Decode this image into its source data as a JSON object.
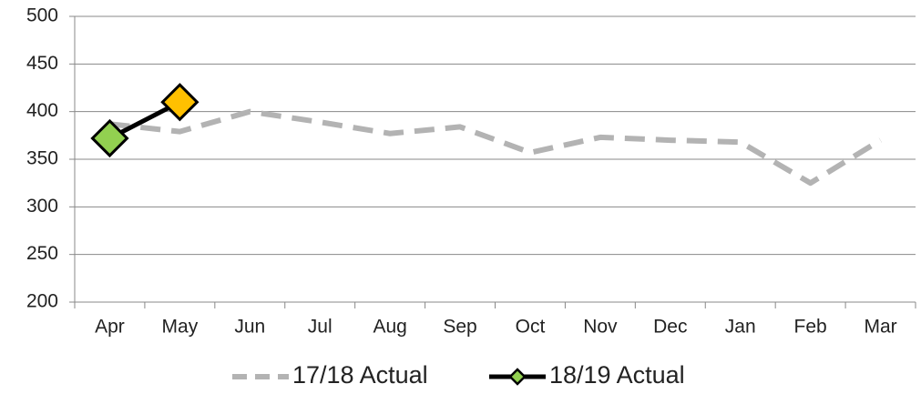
{
  "chart_data": {
    "type": "line",
    "categories": [
      "Apr",
      "May",
      "Jun",
      "Jul",
      "Aug",
      "Sep",
      "Oct",
      "Nov",
      "Dec",
      "Jan",
      "Feb",
      "Mar"
    ],
    "series": [
      {
        "name": "17/18 Actual",
        "color": "#b3b3b3",
        "dashed": true,
        "values": [
          387,
          379,
          400,
          389,
          377,
          384,
          357,
          373,
          370,
          368,
          325,
          370
        ]
      },
      {
        "name": "18/19 Actual",
        "color": "#000000",
        "marker": "diamond",
        "point_colors": [
          "#92d050",
          "#ffc000"
        ],
        "values": [
          372,
          410,
          null,
          null,
          null,
          null,
          null,
          null,
          null,
          null,
          null,
          null
        ]
      }
    ],
    "ylim": [
      200,
      500
    ],
    "yticks": [
      200,
      250,
      300,
      350,
      400,
      450,
      500
    ],
    "grid": true,
    "legend": "bottom"
  }
}
